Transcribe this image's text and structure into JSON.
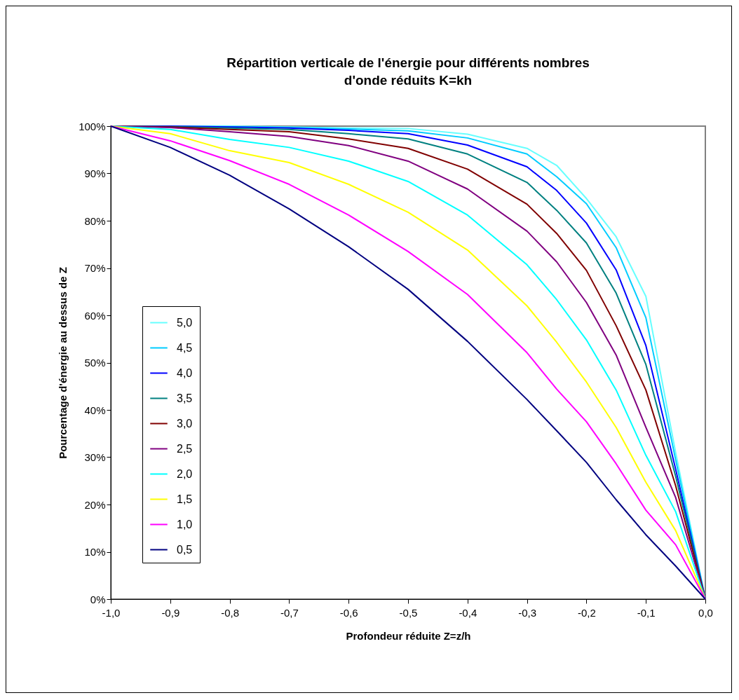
{
  "chart_data": {
    "type": "line",
    "title": "Répartition verticale de l'énergie pour différents nombres d'onde réduits K=kh",
    "xlabel": "Profondeur réduite Z=z/h",
    "ylabel": "Pourcentage d'énergie au dessus de Z",
    "x": [
      -1,
      -0.9,
      -0.8,
      -0.7,
      -0.6,
      -0.5,
      -0.4,
      -0.3,
      -0.25,
      -0.2,
      -0.15,
      -0.1,
      -0.05,
      0
    ],
    "series": [
      {
        "name": "5,0",
        "color": "#66ffff",
        "values": [
          100,
          100,
          100,
          99.8,
          99.6,
          99.5,
          98.3,
          95.3,
          91.7,
          84.7,
          76.6,
          64,
          31,
          0
        ]
      },
      {
        "name": "4,5",
        "color": "#00ccff",
        "values": [
          100,
          100,
          99.9,
          99.7,
          99.4,
          99.0,
          97.5,
          94.1,
          89.3,
          83.6,
          74.3,
          59.5,
          29.5,
          0
        ]
      },
      {
        "name": "4,0",
        "color": "#0000ff",
        "values": [
          100,
          100,
          99.8,
          99.6,
          99.1,
          98.4,
          96.0,
          91.4,
          86.4,
          79.5,
          69.6,
          53.6,
          27.5,
          0
        ]
      },
      {
        "name": "3,5",
        "color": "#008080",
        "values": [
          100,
          99.9,
          99.6,
          99.3,
          98.4,
          97.3,
          94.1,
          88.1,
          82.2,
          75.3,
          64.7,
          49.6,
          26,
          0
        ]
      },
      {
        "name": "3,0",
        "color": "#800000",
        "values": [
          100,
          99.8,
          99.3,
          98.8,
          97.3,
          95.3,
          90.9,
          83.5,
          77.3,
          69.5,
          57.8,
          44.2,
          24,
          0
        ]
      },
      {
        "name": "2,5",
        "color": "#800080",
        "values": [
          100,
          99.7,
          98.8,
          97.8,
          95.9,
          92.6,
          86.7,
          77.8,
          71.3,
          62.7,
          51.6,
          36.3,
          21.5,
          0
        ]
      },
      {
        "name": "2,0",
        "color": "#00ffff",
        "values": [
          100,
          99.3,
          97.2,
          95.5,
          92.6,
          88.3,
          81.2,
          70.7,
          63.3,
          54.8,
          44.2,
          30.4,
          18.5,
          0
        ]
      },
      {
        "name": "1,5",
        "color": "#ffff00",
        "values": [
          100,
          98.4,
          94.8,
          92.3,
          87.7,
          81.8,
          73.8,
          62.0,
          54.3,
          45.9,
          36.3,
          24.7,
          14.5,
          0
        ]
      },
      {
        "name": "1,0",
        "color": "#ff00ff",
        "values": [
          100,
          96.9,
          92.7,
          87.7,
          81.2,
          73.5,
          64.4,
          52.1,
          44.4,
          37.5,
          28.6,
          18.8,
          11.5,
          0
        ]
      },
      {
        "name": "0,5",
        "color": "#000080",
        "values": [
          100,
          95.5,
          89.6,
          82.5,
          74.5,
          65.5,
          54.5,
          42.2,
          35.6,
          28.9,
          21.0,
          13.6,
          7,
          0
        ]
      }
    ],
    "xlim": [
      -1,
      0
    ],
    "xticks": [
      {
        "value": -1,
        "label": "-1,0"
      },
      {
        "value": -0.9,
        "label": "-0,9"
      },
      {
        "value": -0.8,
        "label": "-0,8"
      },
      {
        "value": -0.7,
        "label": "-0,7"
      },
      {
        "value": -0.6,
        "label": "-0,6"
      },
      {
        "value": -0.5,
        "label": "-0,5"
      },
      {
        "value": -0.4,
        "label": "-0,4"
      },
      {
        "value": -0.3,
        "label": "-0,3"
      },
      {
        "value": -0.2,
        "label": "-0,2"
      },
      {
        "value": -0.1,
        "label": "-0,1"
      },
      {
        "value": 0,
        "label": "0,0"
      }
    ],
    "ylim": [
      0,
      100
    ],
    "yticks": [
      {
        "value": 0,
        "label": "0%"
      },
      {
        "value": 10,
        "label": "10%"
      },
      {
        "value": 20,
        "label": "20%"
      },
      {
        "value": 30,
        "label": "30%"
      },
      {
        "value": 40,
        "label": "40%"
      },
      {
        "value": 50,
        "label": "50%"
      },
      {
        "value": 60,
        "label": "60%"
      },
      {
        "value": 70,
        "label": "70%"
      },
      {
        "value": 80,
        "label": "80%"
      },
      {
        "value": 90,
        "label": "90%"
      },
      {
        "value": 100,
        "label": "100%"
      }
    ],
    "grid": false,
    "legend": "left",
    "marker": "none"
  }
}
